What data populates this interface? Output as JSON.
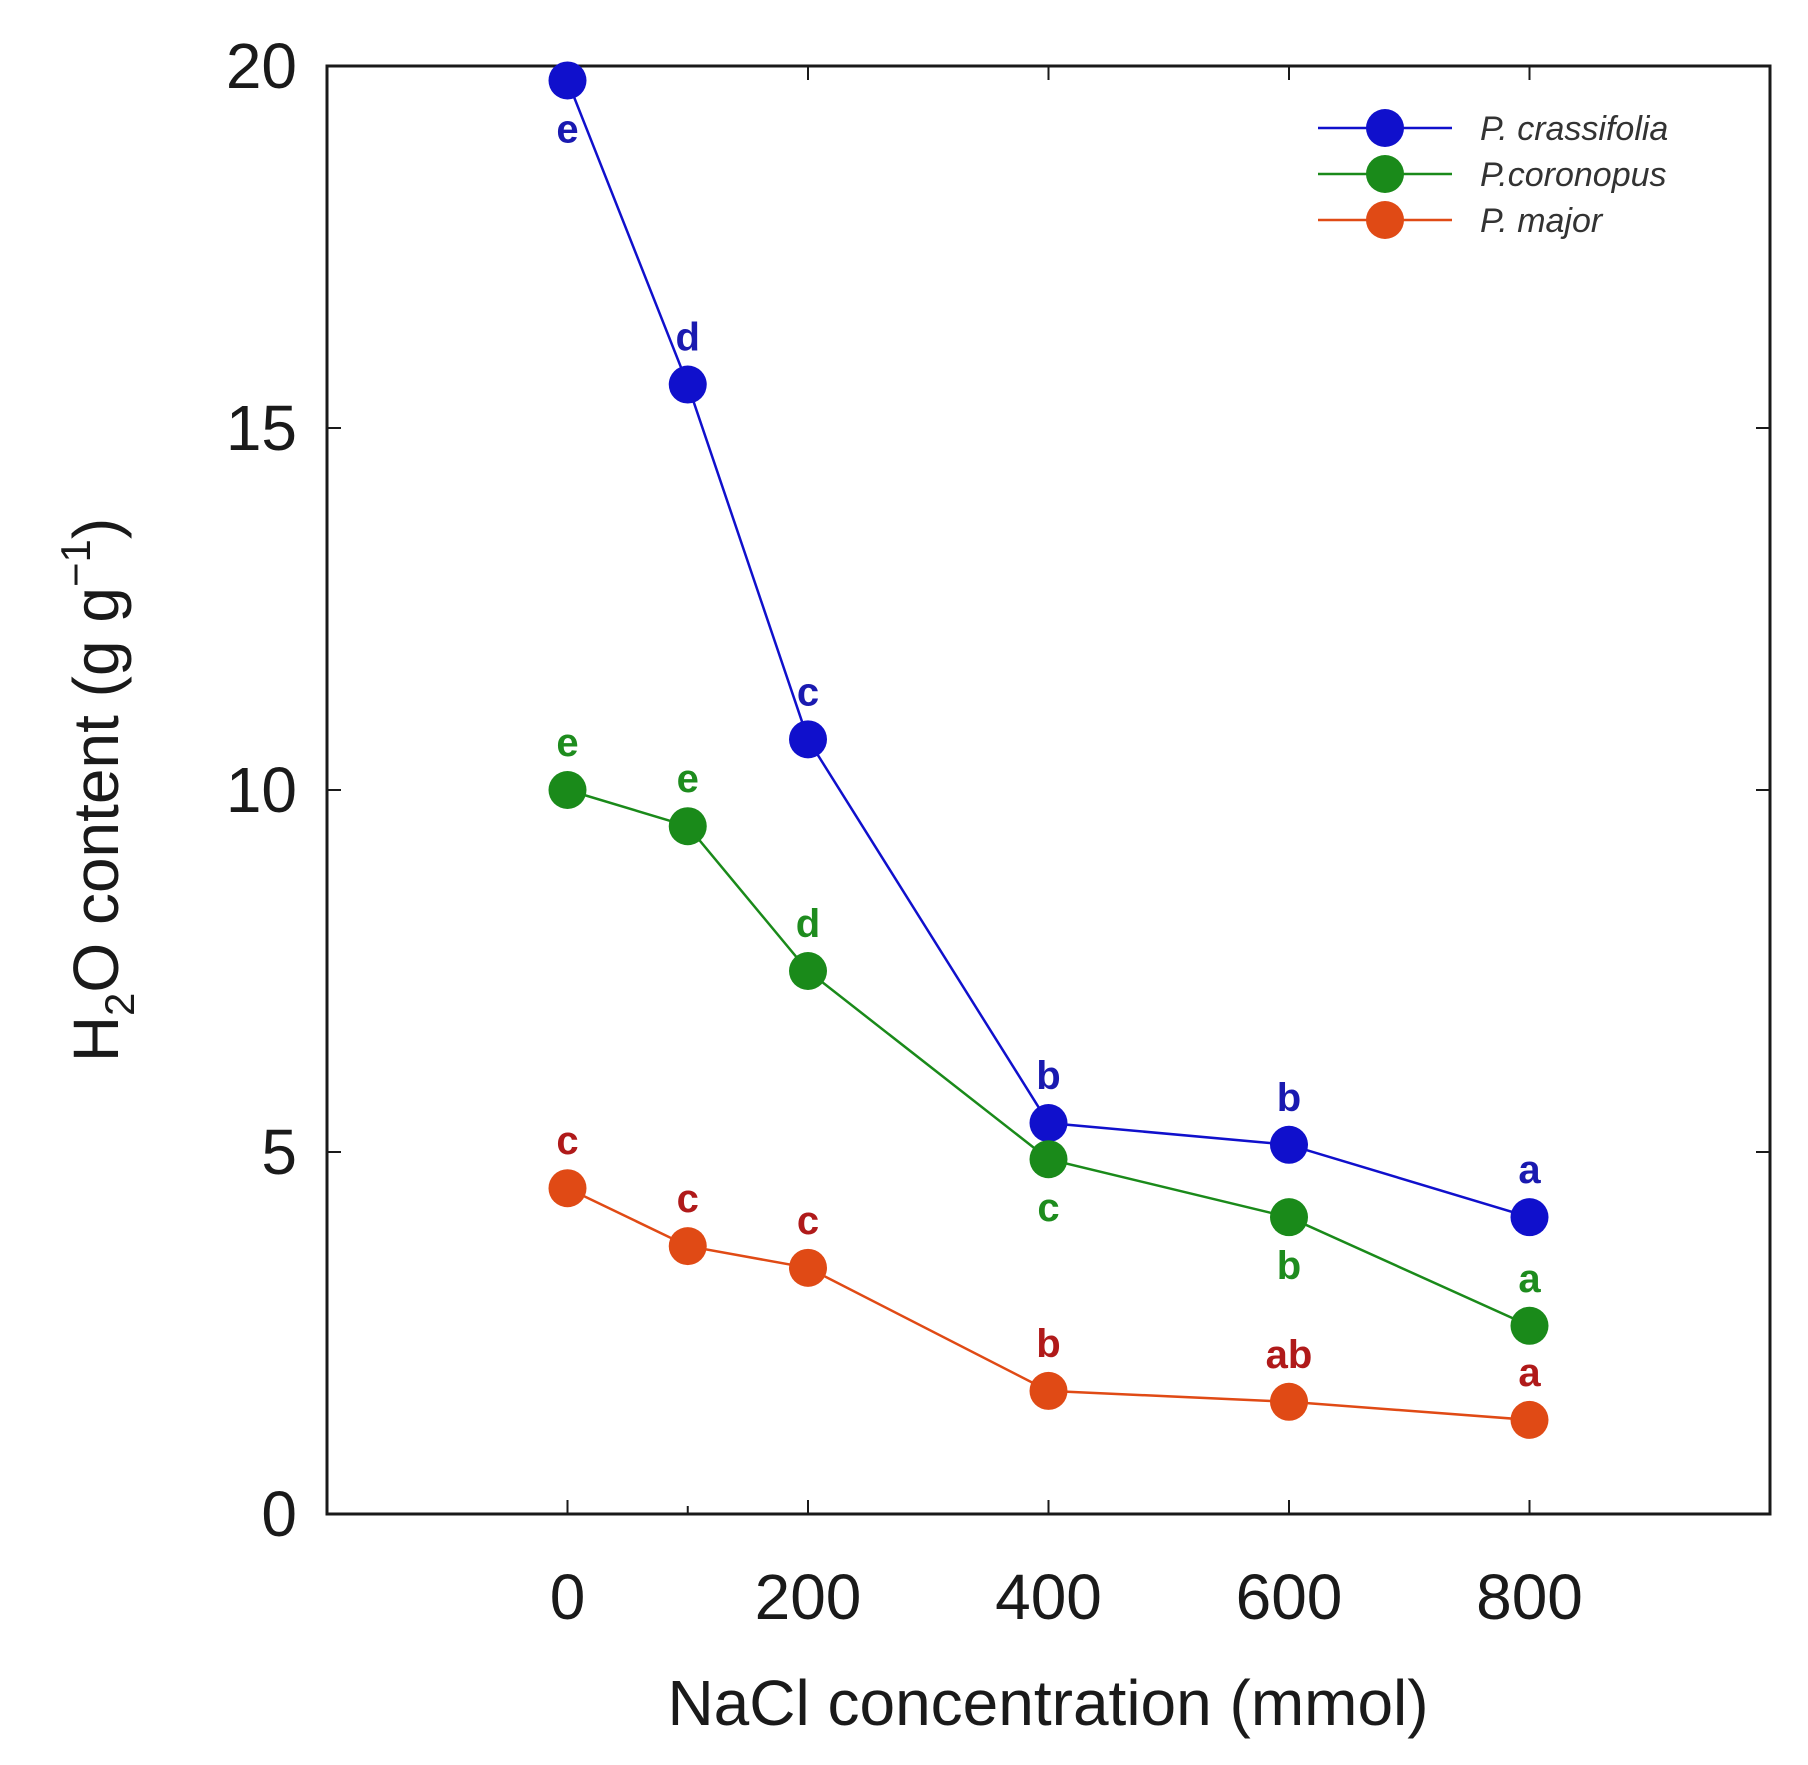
{
  "chart_data": {
    "type": "line",
    "title": "",
    "xlabel": "NaCl concentration (mmol)",
    "ylabel": {
      "prefix": "H",
      "subscript": "2",
      "main": "O content (g g",
      "superscript": "−1",
      "suffix": ")"
    },
    "xlim": [
      -200,
      1000
    ],
    "ylim": [
      0,
      20
    ],
    "xticks": [
      0,
      200,
      400,
      600,
      800
    ],
    "xtick_labels": [
      "0",
      "200",
      "400",
      "600",
      "800"
    ],
    "minor_xticks": [
      100
    ],
    "yticks": [
      0,
      5,
      10,
      15,
      20
    ],
    "ytick_labels": [
      "0",
      "5",
      "10",
      "15",
      "20"
    ],
    "x": [
      0,
      100,
      200,
      400,
      600,
      800
    ],
    "legend_position": "top-right",
    "series": [
      {
        "name": "P. crassifolia",
        "color": "#1010cc",
        "letter_color": "#1a1ab0",
        "values": [
          19.8,
          15.6,
          10.7,
          5.4,
          5.1,
          4.1
        ],
        "letters": [
          "e",
          "d",
          "c",
          "b",
          "b",
          "a"
        ],
        "letter_placement": [
          "below",
          "above",
          "above",
          "above",
          "above",
          "above"
        ]
      },
      {
        "name": "P.coronopus",
        "color": "#1a8a1a",
        "letter_color": "#1e8c1e",
        "values": [
          10.0,
          9.5,
          7.5,
          4.9,
          4.1,
          2.6
        ],
        "letters": [
          "e",
          "e",
          "d",
          "c",
          "b",
          "a"
        ],
        "letter_placement": [
          "above",
          "above",
          "above",
          "below",
          "below",
          "above"
        ]
      },
      {
        "name": "P. major",
        "color": "#e04a15",
        "letter_color": "#b01a1a",
        "values": [
          4.5,
          3.7,
          3.4,
          1.7,
          1.55,
          1.3
        ],
        "letters": [
          "c",
          "c",
          "c",
          "b",
          "ab",
          "a"
        ],
        "letter_placement": [
          "above",
          "above",
          "above",
          "above",
          "above",
          "above"
        ]
      }
    ]
  }
}
